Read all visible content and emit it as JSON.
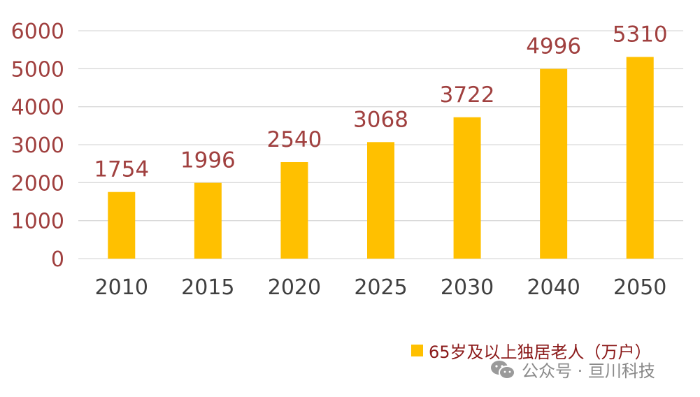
{
  "chart_data": {
    "type": "bar",
    "categories": [
      "2010",
      "2015",
      "2020",
      "2025",
      "2030",
      "2040",
      "2050"
    ],
    "series": [
      {
        "name": "65岁及以上独居老人（万户）",
        "values": [
          1754,
          1996,
          2540,
          3068,
          3722,
          4996,
          5310
        ]
      }
    ],
    "data_labels": [
      "1754",
      "1996",
      "2540",
      "3068",
      "3722",
      "4996",
      "5310"
    ],
    "y_ticks": [
      "0",
      "1000",
      "2000",
      "3000",
      "4000",
      "5000",
      "6000"
    ],
    "ylim": [
      0,
      6000
    ],
    "grid": true,
    "legend_position": "bottom-right",
    "colors": {
      "bar": "#FFC000",
      "value_label": "#A0403F",
      "tick_label": "#404040",
      "gridline": "#D9D9D9"
    }
  },
  "legend": {
    "label": "65岁及以上独居老人（万户）"
  },
  "watermark": {
    "text": "公众号 · 亘川科技",
    "icon": "wechat-icon"
  }
}
